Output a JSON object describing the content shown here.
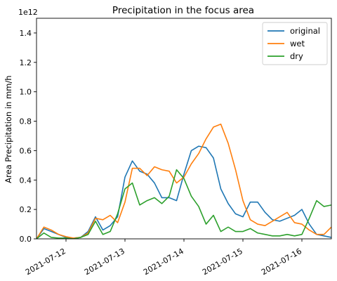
{
  "chart_data": {
    "type": "line",
    "title": "Precipitation in the focus area",
    "xlabel": "",
    "ylabel": "Area Precipitation in mm/h",
    "y_offset_label": "1e12",
    "y_scale": 1000000000000.0,
    "xlim": [
      "2021-07-11T12:00",
      "2021-07-16T12:00"
    ],
    "ylim": [
      0,
      1.5
    ],
    "x_ticks": [
      "2021-07-12",
      "2021-07-13",
      "2021-07-14",
      "2021-07-15",
      "2021-07-16"
    ],
    "y_ticks": [
      "0.0",
      "0.2",
      "0.4",
      "0.6",
      "0.8",
      "1.0",
      "1.2",
      "1.4"
    ],
    "grid": false,
    "legend_position": "top-right",
    "x": [
      "2021-07-11T12:00",
      "2021-07-11T15:00",
      "2021-07-11T18:00",
      "2021-07-11T21:00",
      "2021-07-12T00:00",
      "2021-07-12T03:00",
      "2021-07-12T06:00",
      "2021-07-12T09:00",
      "2021-07-12T12:00",
      "2021-07-12T15:00",
      "2021-07-12T18:00",
      "2021-07-12T21:00",
      "2021-07-13T00:00",
      "2021-07-13T03:00",
      "2021-07-13T06:00",
      "2021-07-13T09:00",
      "2021-07-13T12:00",
      "2021-07-13T15:00",
      "2021-07-13T18:00",
      "2021-07-13T21:00",
      "2021-07-14T00:00",
      "2021-07-14T03:00",
      "2021-07-14T06:00",
      "2021-07-14T09:00",
      "2021-07-14T12:00",
      "2021-07-14T15:00",
      "2021-07-14T18:00",
      "2021-07-14T21:00",
      "2021-07-15T00:00",
      "2021-07-15T03:00",
      "2021-07-15T06:00",
      "2021-07-15T09:00",
      "2021-07-15T12:00",
      "2021-07-15T15:00",
      "2021-07-15T18:00",
      "2021-07-15T21:00",
      "2021-07-16T00:00",
      "2021-07-16T03:00",
      "2021-07-16T06:00",
      "2021-07-16T09:00",
      "2021-07-16T12:00"
    ],
    "series": [
      {
        "name": "original",
        "color": "#1f77b4",
        "values": [
          0.0,
          0.07,
          0.05,
          0.03,
          0.01,
          0.005,
          0.01,
          0.05,
          0.15,
          0.06,
          0.09,
          0.15,
          0.42,
          0.53,
          0.46,
          0.44,
          0.38,
          0.28,
          0.28,
          0.26,
          0.44,
          0.6,
          0.63,
          0.62,
          0.55,
          0.34,
          0.24,
          0.17,
          0.15,
          0.25,
          0.25,
          0.18,
          0.13,
          0.12,
          0.14,
          0.16,
          0.2,
          0.1,
          0.03,
          0.02,
          0.01
        ]
      },
      {
        "name": "wet",
        "color": "#ff7f0e",
        "values": [
          0.0,
          0.08,
          0.06,
          0.03,
          0.015,
          0.005,
          0.01,
          0.04,
          0.14,
          0.13,
          0.16,
          0.11,
          0.25,
          0.48,
          0.48,
          0.43,
          0.49,
          0.47,
          0.46,
          0.38,
          0.42,
          0.51,
          0.58,
          0.68,
          0.76,
          0.78,
          0.65,
          0.47,
          0.26,
          0.13,
          0.1,
          0.09,
          0.12,
          0.15,
          0.18,
          0.11,
          0.1,
          0.06,
          0.03,
          0.03,
          0.08
        ]
      },
      {
        "name": "dry",
        "color": "#2ca02c",
        "values": [
          0.0,
          0.04,
          0.01,
          0.005,
          0.005,
          0.0,
          0.01,
          0.03,
          0.12,
          0.03,
          0.05,
          0.17,
          0.34,
          0.38,
          0.23,
          0.26,
          0.28,
          0.24,
          0.29,
          0.47,
          0.41,
          0.29,
          0.22,
          0.1,
          0.16,
          0.05,
          0.08,
          0.05,
          0.05,
          0.07,
          0.04,
          0.03,
          0.02,
          0.02,
          0.03,
          0.02,
          0.03,
          0.14,
          0.26,
          0.22,
          0.23
        ]
      }
    ]
  }
}
